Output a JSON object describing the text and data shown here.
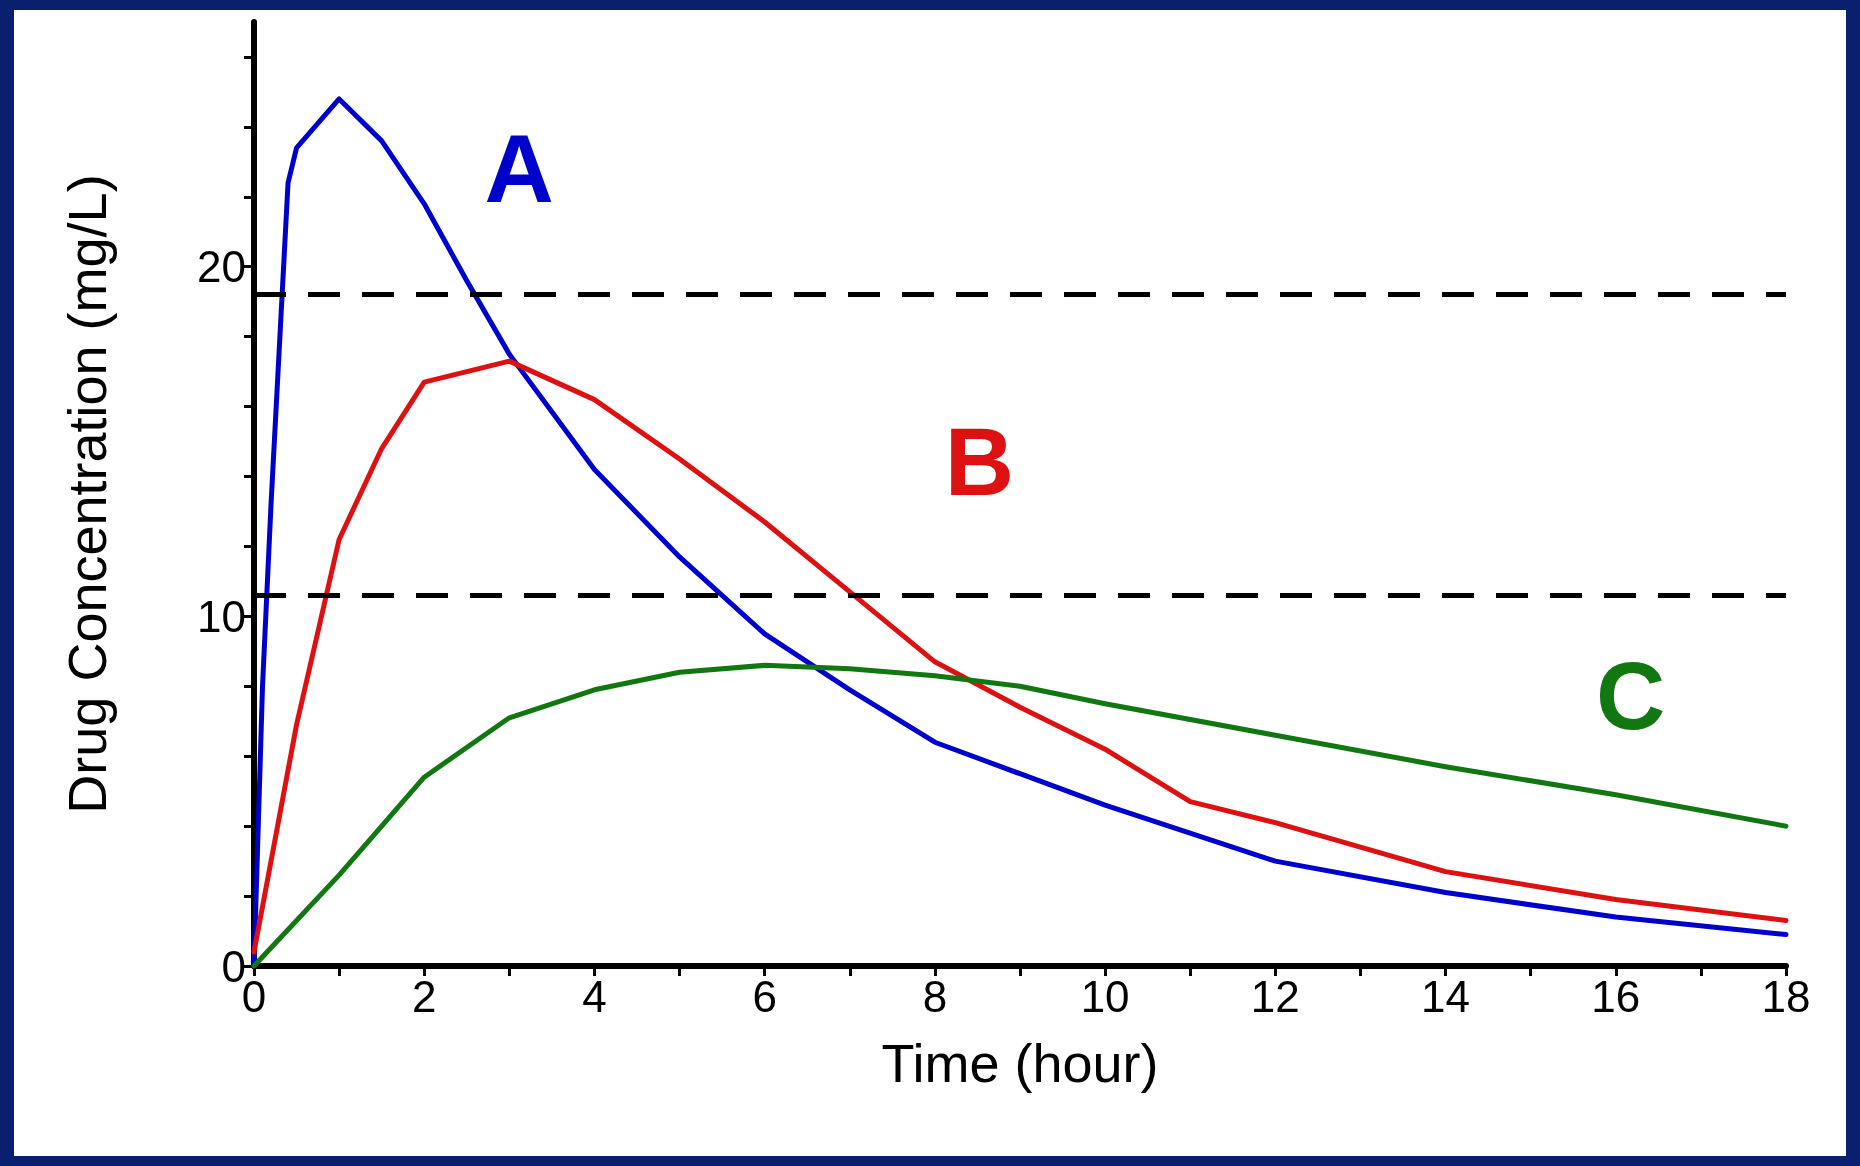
{
  "chart_data": {
    "type": "line",
    "xlabel": "Time (hour)",
    "ylabel": "Drug Concentration (mg/L)",
    "xlim": [
      0,
      18
    ],
    "ylim": [
      0,
      27
    ],
    "xticks": [
      0,
      {
        "value": 1,
        "label": null
      },
      2,
      {
        "value": 3,
        "label": null
      },
      4,
      {
        "value": 5,
        "label": null
      },
      6,
      {
        "value": 7,
        "label": null
      },
      8,
      {
        "value": 9,
        "label": null
      },
      10,
      {
        "value": 11,
        "label": null
      },
      12,
      {
        "value": 13,
        "label": null
      },
      14,
      {
        "value": 15,
        "label": null
      },
      16,
      {
        "value": 17,
        "label": null
      },
      18
    ],
    "yticks": [
      0,
      {
        "value": 2,
        "label": null
      },
      {
        "value": 4,
        "label": null
      },
      {
        "value": 6,
        "label": null
      },
      {
        "value": 8,
        "label": null
      },
      10,
      {
        "value": 12,
        "label": null
      },
      {
        "value": 14,
        "label": null
      },
      {
        "value": 16,
        "label": null
      },
      {
        "value": 18,
        "label": null
      },
      20,
      {
        "value": 22,
        "label": null
      },
      {
        "value": 24,
        "label": null
      },
      {
        "value": 26,
        "label": null
      }
    ],
    "grid": false,
    "legend": false,
    "marker": "none",
    "line_style": "solid",
    "ref_lines": [
      {
        "axis": "y",
        "value": 19.2,
        "color": "#000000",
        "line_style": "dashed"
      },
      {
        "axis": "y",
        "value": 10.6,
        "color": "#000000",
        "line_style": "dashed"
      }
    ],
    "series": [
      {
        "name": "A",
        "color": "#0000cc",
        "x": [
          0,
          0.1,
          0.2,
          0.4,
          0.5,
          1,
          1.5,
          2,
          2.5,
          3,
          4,
          5,
          6,
          7,
          8,
          9,
          10,
          12,
          14,
          16,
          18
        ],
        "values": [
          0,
          8,
          13.2,
          22.4,
          23.4,
          24.8,
          23.6,
          21.8,
          19.6,
          17.5,
          14.2,
          11.7,
          9.5,
          7.9,
          6.4,
          5.5,
          4.6,
          3.0,
          2.1,
          1.4,
          0.9
        ]
      },
      {
        "name": "B",
        "color": "#dd1111",
        "x": [
          0,
          0.5,
          1,
          1.5,
          2,
          3,
          4,
          5,
          6,
          7,
          8,
          9,
          10,
          11,
          12,
          14,
          16,
          18
        ],
        "values": [
          0.4,
          6.9,
          12.2,
          14.8,
          16.7,
          17.3,
          16.2,
          14.5,
          12.7,
          10.7,
          8.7,
          7.4,
          6.2,
          4.7,
          4.1,
          2.7,
          1.9,
          1.3
        ]
      },
      {
        "name": "C",
        "color": "#117711",
        "x": [
          0,
          1,
          2,
          3,
          4,
          5,
          6,
          7,
          8,
          9,
          10,
          12,
          14,
          16,
          18
        ],
        "values": [
          0,
          2.6,
          5.4,
          7.1,
          7.9,
          8.4,
          8.6,
          8.5,
          8.3,
          8.0,
          7.5,
          6.6,
          5.7,
          4.9,
          4.0
        ]
      }
    ]
  }
}
